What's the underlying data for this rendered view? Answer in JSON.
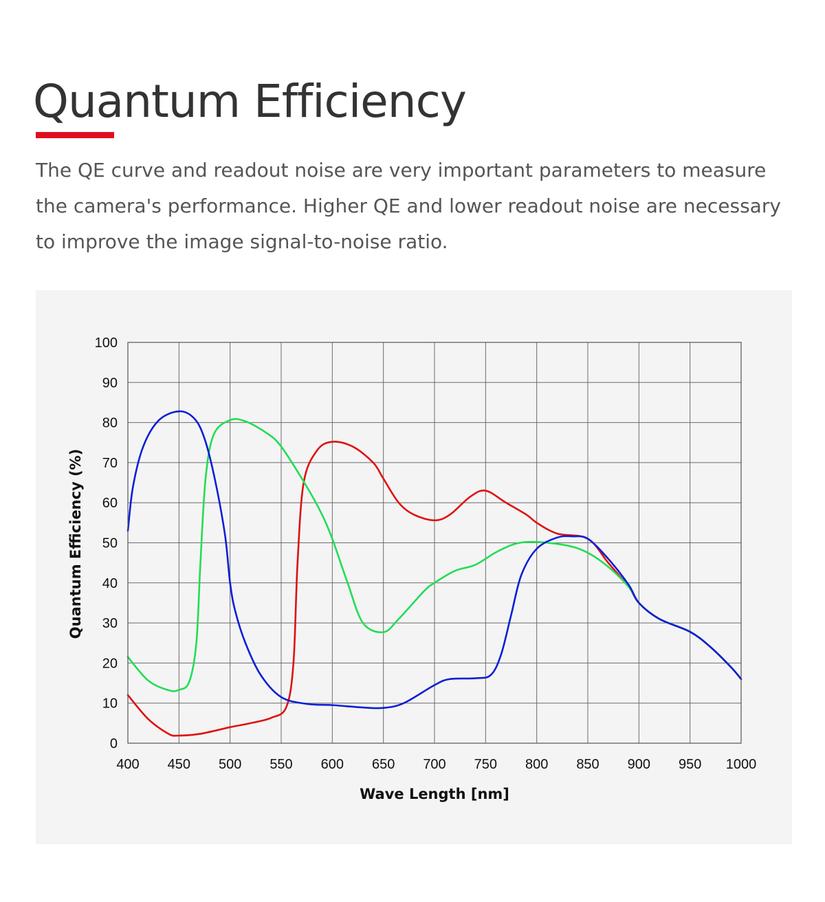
{
  "header": {
    "title": "Quantum Efficiency",
    "accent_color": "#e10f1e",
    "intro": "The QE curve and readout noise are very important parameters to measure the camera's performance. Higher QE and lower readout noise are necessary to improve the image signal-to-noise ratio."
  },
  "chart_data": {
    "type": "line",
    "title": "",
    "xlabel": "Wave Length [nm]",
    "ylabel": "Quantum Efficiency (%)",
    "xlim": [
      400,
      1000
    ],
    "ylim": [
      0,
      100
    ],
    "x_ticks": [
      "400",
      "450",
      "500",
      "550",
      "600",
      "650",
      "700",
      "750",
      "800",
      "850",
      "900",
      "950",
      "1000"
    ],
    "y_ticks": [
      "0",
      "10",
      "20",
      "30",
      "40",
      "50",
      "60",
      "70",
      "80",
      "90",
      "100"
    ],
    "grid": true,
    "legend": "none",
    "series": [
      {
        "color": "#e01010",
        "points": [
          [
            400,
            12
          ],
          [
            420,
            6
          ],
          [
            440,
            2.3
          ],
          [
            450,
            1.9
          ],
          [
            470,
            2.3
          ],
          [
            490,
            3.4
          ],
          [
            500,
            4
          ],
          [
            520,
            5
          ],
          [
            540,
            6.3
          ],
          [
            555,
            9
          ],
          [
            562,
            20
          ],
          [
            566,
            45
          ],
          [
            572,
            65
          ],
          [
            585,
            73
          ],
          [
            600,
            75.2
          ],
          [
            620,
            74
          ],
          [
            640,
            70
          ],
          [
            650,
            66
          ],
          [
            665,
            60
          ],
          [
            680,
            57
          ],
          [
            700,
            55.6
          ],
          [
            715,
            57
          ],
          [
            735,
            61.5
          ],
          [
            750,
            63
          ],
          [
            770,
            60
          ],
          [
            790,
            57
          ],
          [
            800,
            55
          ],
          [
            820,
            52.3
          ],
          [
            850,
            51
          ],
          [
            870,
            45
          ],
          [
            890,
            39
          ],
          [
            900,
            35
          ],
          [
            920,
            31
          ],
          [
            950,
            27.8
          ],
          [
            970,
            24
          ],
          [
            990,
            19
          ],
          [
            1000,
            16
          ]
        ]
      },
      {
        "color": "#22dd55",
        "points": [
          [
            400,
            21.5
          ],
          [
            420,
            15.6
          ],
          [
            440,
            13.2
          ],
          [
            450,
            13.3
          ],
          [
            460,
            15.3
          ],
          [
            467,
            25
          ],
          [
            471,
            45
          ],
          [
            476,
            66
          ],
          [
            484,
            77
          ],
          [
            500,
            80.6
          ],
          [
            515,
            80.3
          ],
          [
            535,
            77.5
          ],
          [
            550,
            74
          ],
          [
            575,
            64
          ],
          [
            590,
            57
          ],
          [
            600,
            51
          ],
          [
            615,
            40
          ],
          [
            630,
            30
          ],
          [
            650,
            27.7
          ],
          [
            665,
            31
          ],
          [
            690,
            38
          ],
          [
            700,
            40
          ],
          [
            720,
            43
          ],
          [
            740,
            44.5
          ],
          [
            760,
            47.6
          ],
          [
            780,
            49.8
          ],
          [
            800,
            50.2
          ],
          [
            830,
            49.3
          ],
          [
            850,
            47.5
          ],
          [
            870,
            44
          ],
          [
            890,
            39
          ],
          [
            900,
            35
          ],
          [
            920,
            31
          ],
          [
            950,
            27.8
          ],
          [
            970,
            24
          ],
          [
            990,
            19
          ],
          [
            1000,
            16
          ]
        ]
      },
      {
        "color": "#0a1fd6",
        "points": [
          [
            400,
            53
          ],
          [
            405,
            64
          ],
          [
            415,
            74
          ],
          [
            430,
            80.5
          ],
          [
            450,
            82.8
          ],
          [
            465,
            81
          ],
          [
            475,
            76
          ],
          [
            485,
            66
          ],
          [
            495,
            52
          ],
          [
            500,
            40
          ],
          [
            505,
            33
          ],
          [
            515,
            25
          ],
          [
            530,
            17
          ],
          [
            550,
            11.5
          ],
          [
            575,
            9.8
          ],
          [
            600,
            9.5
          ],
          [
            630,
            8.9
          ],
          [
            650,
            8.8
          ],
          [
            670,
            10
          ],
          [
            700,
            14.5
          ],
          [
            715,
            16
          ],
          [
            740,
            16.2
          ],
          [
            755,
            17
          ],
          [
            765,
            22
          ],
          [
            775,
            32
          ],
          [
            785,
            42
          ],
          [
            800,
            48.5
          ],
          [
            820,
            51.3
          ],
          [
            835,
            51.6
          ],
          [
            850,
            51
          ],
          [
            870,
            46
          ],
          [
            890,
            39.5
          ],
          [
            900,
            35
          ],
          [
            920,
            31
          ],
          [
            950,
            27.8
          ],
          [
            970,
            24
          ],
          [
            990,
            19
          ],
          [
            1000,
            16
          ]
        ]
      }
    ]
  }
}
